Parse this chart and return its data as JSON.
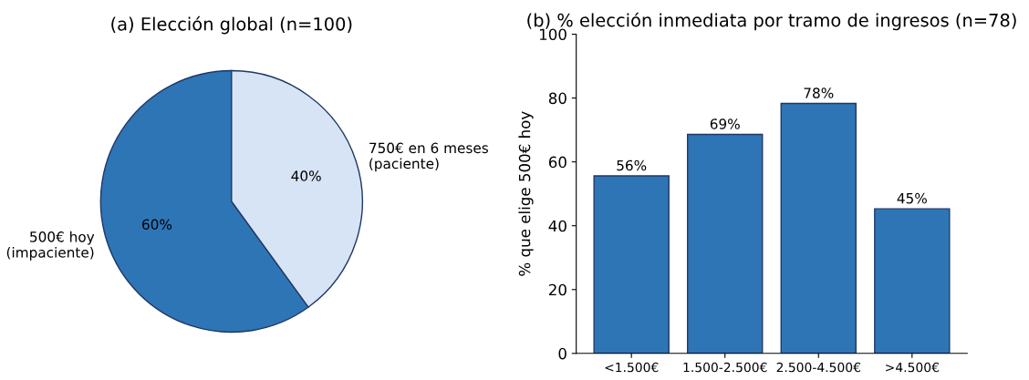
{
  "chart_data": [
    {
      "type": "pie",
      "title": "(a) Elección global (n=100)",
      "categories": [
        "500€ hoy\n(impaciente)",
        "750€ en 6 meses\n(paciente)"
      ],
      "values": [
        60,
        40
      ],
      "colors": [
        "#2e75b6",
        "#d6e4f5"
      ],
      "value_labels": [
        "60%",
        "40%"
      ]
    },
    {
      "type": "bar",
      "title": "(b) % elección inmediata por tramo de ingresos (n=78)",
      "ylabel": "% que elige 500€ hoy",
      "categories": [
        "<1.500€",
        "1.500-2.500€",
        "2.500-4.500€",
        ">4.500€"
      ],
      "values": [
        55.6,
        68.6,
        78.3,
        45.3
      ],
      "value_labels": [
        "56%",
        "69%",
        "78%",
        "45%"
      ],
      "color": "#2e75b6",
      "ylim": [
        0,
        100
      ],
      "yticks": [
        0,
        20,
        40,
        60,
        80,
        100
      ],
      "grid": false
    }
  ]
}
